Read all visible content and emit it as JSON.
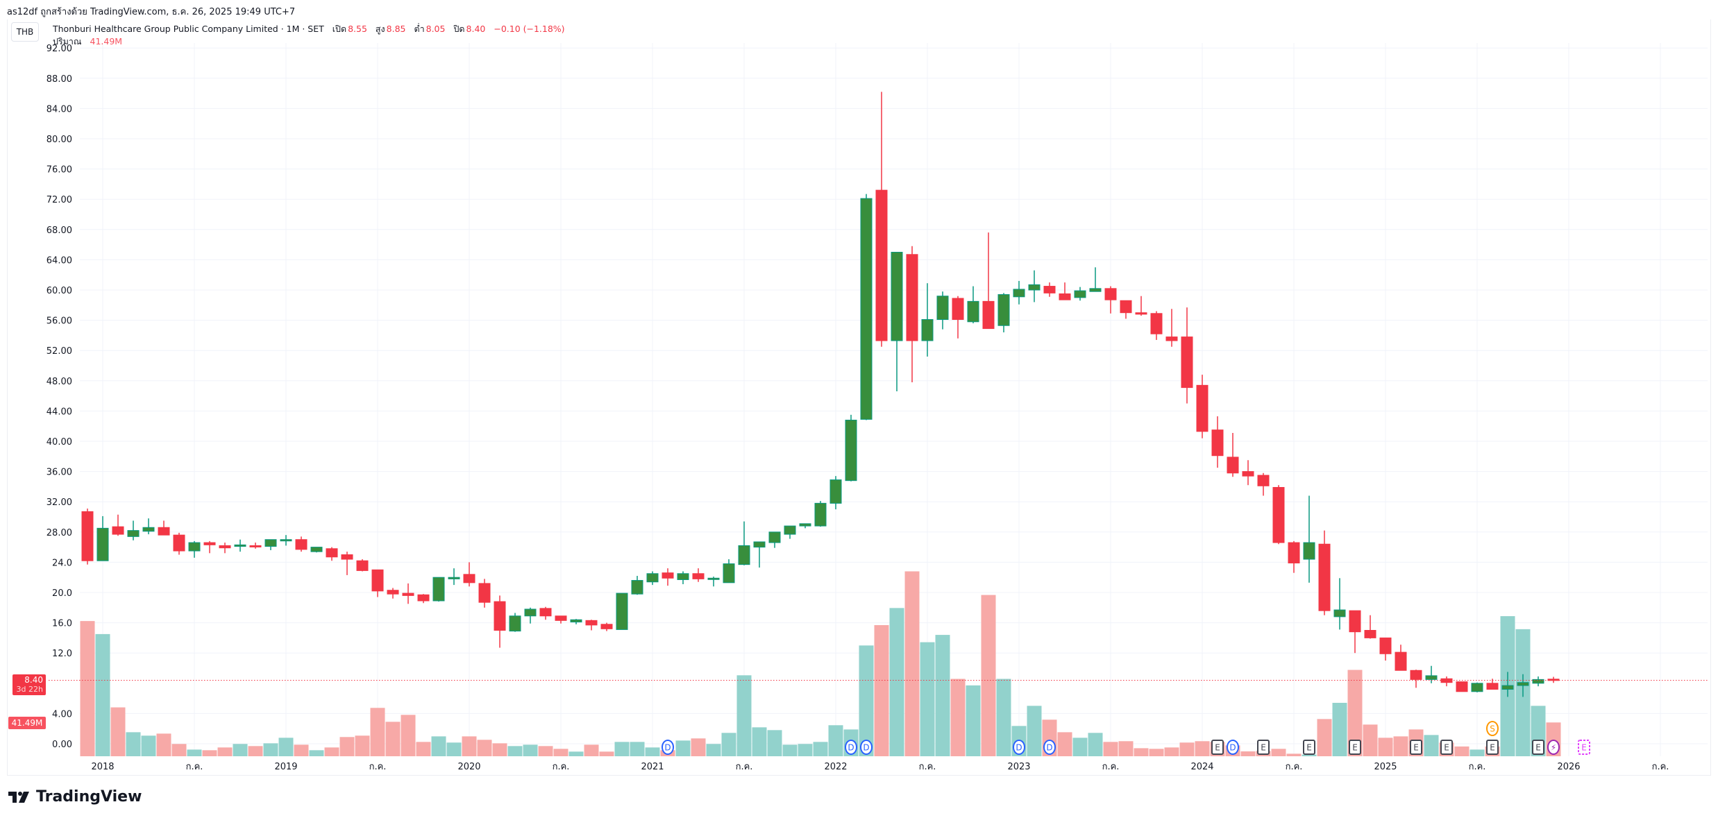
{
  "attribution": "as12df ถูกสร้างด้วย TradingView.com, ธ.ค. 26, 2025 19:49 UTC+7",
  "currency": "THB",
  "legend": {
    "title": "Thonburi Healthcare Group Public Company Limited · 1M · SET",
    "open_label": "เปิด",
    "open": "8.55",
    "high_label": "สูง",
    "high": "8.85",
    "low_label": "ต่ำ",
    "low": "8.05",
    "close_label": "ปิด",
    "close": "8.40",
    "change": "−0.10 (−1.18%)",
    "volume_label": "ปริมาณ",
    "volume": "41.49M"
  },
  "last_price_tag": {
    "price": "8.40",
    "countdown": "3d 22h"
  },
  "volume_tag": "41.49M",
  "brand": "TradingView",
  "colors": {
    "up": "#388e3c",
    "up_wick": "#089981",
    "down": "#f23645",
    "vol_up": "#92d2cc",
    "vol_down": "#f7a9a7",
    "grid": "#f0f3fa"
  },
  "chart_data": {
    "type": "candlestick",
    "interval": "1M",
    "start_month": "2017-12",
    "ylim": [
      0,
      92
    ],
    "y_ticks": [
      {
        "v": 92,
        "label": "92.00"
      },
      {
        "v": 88,
        "label": "88.00"
      },
      {
        "v": 84,
        "label": "84.00"
      },
      {
        "v": 80,
        "label": "80.00"
      },
      {
        "v": 76,
        "label": "76.00"
      },
      {
        "v": 72,
        "label": "72.00"
      },
      {
        "v": 68,
        "label": "68.00"
      },
      {
        "v": 64,
        "label": "64.00"
      },
      {
        "v": 60,
        "label": "60.00"
      },
      {
        "v": 56,
        "label": "56.00"
      },
      {
        "v": 52,
        "label": "52.00"
      },
      {
        "v": 48,
        "label": "48.00"
      },
      {
        "v": 44,
        "label": "44.00"
      },
      {
        "v": 40,
        "label": "40.00"
      },
      {
        "v": 36,
        "label": "36.00"
      },
      {
        "v": 32,
        "label": "32.00"
      },
      {
        "v": 28,
        "label": "28.00"
      },
      {
        "v": 24,
        "label": "24.0"
      },
      {
        "v": 20,
        "label": "20.0"
      },
      {
        "v": 16,
        "label": "16.0"
      },
      {
        "v": 12,
        "label": "12.0"
      },
      {
        "v": 4,
        "label": "4.00"
      },
      {
        "v": 0,
        "label": "0.00"
      }
    ],
    "x_ticks": [
      {
        "month": 1,
        "label": "2018"
      },
      {
        "month": 7,
        "label": "ก.ค."
      },
      {
        "month": 13,
        "label": "2019"
      },
      {
        "month": 19,
        "label": "ก.ค."
      },
      {
        "month": 25,
        "label": "2020"
      },
      {
        "month": 31,
        "label": "ก.ค."
      },
      {
        "month": 37,
        "label": "2021"
      },
      {
        "month": 43,
        "label": "ก.ค."
      },
      {
        "month": 49,
        "label": "2022"
      },
      {
        "month": 55,
        "label": "ก.ค."
      },
      {
        "month": 61,
        "label": "2023"
      },
      {
        "month": 67,
        "label": "ก.ค."
      },
      {
        "month": 73,
        "label": "2024"
      },
      {
        "month": 79,
        "label": "ก.ค."
      },
      {
        "month": 85,
        "label": "2025"
      },
      {
        "month": 91,
        "label": "ก.ค."
      },
      {
        "month": 97,
        "label": "2026"
      },
      {
        "month": 103,
        "label": "ก.ค."
      }
    ],
    "last_price": 8.4,
    "ohlcv": [
      [
        30.7,
        31.1,
        23.7,
        24.2,
        166
      ],
      [
        24.2,
        30.1,
        24.2,
        28.5,
        150
      ],
      [
        28.7,
        30.3,
        27.5,
        27.7,
        60
      ],
      [
        27.4,
        29.5,
        26.9,
        28.2,
        29.5
      ],
      [
        28.1,
        29.8,
        27.7,
        28.6,
        25.3
      ],
      [
        28.6,
        29.5,
        27.6,
        27.6,
        27.8
      ],
      [
        27.6,
        27.9,
        25.0,
        25.5,
        15.1
      ],
      [
        25.5,
        26.8,
        24.6,
        26.6,
        8.2
      ],
      [
        26.6,
        26.8,
        25.2,
        26.3,
        7.4
      ],
      [
        26.2,
        26.6,
        25.2,
        25.9,
        10.8
      ],
      [
        26.1,
        27.0,
        25.4,
        26.3,
        15.1
      ],
      [
        26.2,
        26.6,
        25.8,
        26.1,
        12.5
      ],
      [
        26.1,
        27.0,
        25.6,
        27.0,
        15.9
      ],
      [
        26.9,
        27.6,
        26.2,
        27.0,
        22.7
      ],
      [
        27.0,
        27.4,
        25.4,
        25.7,
        14.2
      ],
      [
        25.4,
        26.0,
        25.3,
        26.0,
        7.4
      ],
      [
        25.8,
        26.0,
        24.2,
        24.7,
        10.8
      ],
      [
        25.0,
        25.4,
        22.3,
        24.4,
        23.6
      ],
      [
        24.2,
        24.4,
        22.8,
        22.9,
        25.3
      ],
      [
        23.0,
        23.0,
        19.4,
        20.2,
        59.4
      ],
      [
        20.3,
        20.6,
        19.2,
        19.8,
        42.3
      ],
      [
        19.9,
        21.2,
        18.5,
        19.6,
        50.8
      ],
      [
        19.7,
        19.8,
        18.6,
        18.9,
        17.6
      ],
      [
        18.9,
        22.0,
        18.8,
        22.0,
        24.4
      ],
      [
        21.8,
        23.2,
        21.0,
        22.0,
        16.8
      ],
      [
        22.4,
        24.0,
        20.8,
        21.3,
        24.4
      ],
      [
        21.2,
        21.8,
        18.0,
        18.7,
        20.2
      ],
      [
        18.8,
        19.6,
        12.7,
        15.0,
        15.9
      ],
      [
        14.9,
        17.3,
        14.8,
        16.9,
        12.5
      ],
      [
        16.9,
        18.0,
        15.9,
        17.8,
        14.2
      ],
      [
        17.9,
        18.1,
        16.4,
        16.9,
        12.5
      ],
      [
        16.9,
        16.9,
        15.9,
        16.3,
        9.1
      ],
      [
        16.1,
        16.5,
        15.8,
        16.4,
        5.7
      ],
      [
        16.3,
        16.4,
        15.0,
        15.7,
        14.2
      ],
      [
        15.8,
        16.0,
        14.9,
        15.2,
        5.7
      ],
      [
        15.1,
        19.9,
        15.1,
        19.9,
        17.6
      ],
      [
        19.8,
        22.2,
        19.7,
        21.6,
        17.6
      ],
      [
        21.4,
        22.8,
        21.0,
        22.5,
        10.8
      ],
      [
        22.6,
        23.2,
        20.9,
        21.9,
        7.4
      ],
      [
        21.7,
        22.8,
        21.1,
        22.5,
        19.3
      ],
      [
        22.5,
        23.2,
        21.4,
        21.8,
        21.9
      ],
      [
        21.8,
        22.1,
        20.8,
        21.9,
        15.1
      ],
      [
        21.3,
        24.4,
        21.3,
        23.8,
        28.7
      ],
      [
        23.7,
        29.4,
        23.6,
        26.2,
        99.4
      ],
      [
        26.0,
        26.7,
        23.3,
        26.7,
        35.5
      ],
      [
        26.6,
        28.0,
        25.9,
        28.0,
        32.1
      ],
      [
        27.7,
        28.8,
        27.1,
        28.8,
        14.2
      ],
      [
        28.8,
        29.1,
        28.5,
        29.1,
        15.1
      ],
      [
        28.8,
        32.1,
        28.7,
        31.8,
        17.6
      ],
      [
        31.8,
        35.4,
        31.0,
        34.9,
        38.1
      ],
      [
        34.8,
        43.5,
        34.7,
        42.8,
        32.9
      ],
      [
        42.9,
        72.7,
        42.8,
        72.1,
        136
      ],
      [
        73.2,
        86.2,
        52.5,
        53.3,
        161
      ],
      [
        53.3,
        65.0,
        46.6,
        65.0,
        182
      ],
      [
        64.7,
        65.8,
        47.8,
        53.3,
        227
      ],
      [
        53.3,
        60.9,
        51.2,
        56.1,
        140
      ],
      [
        56.1,
        59.8,
        54.8,
        59.2,
        149
      ],
      [
        58.9,
        59.2,
        53.6,
        56.1,
        95
      ],
      [
        55.8,
        60.5,
        55.6,
        58.5,
        87
      ],
      [
        58.5,
        67.6,
        54.9,
        54.9,
        198
      ],
      [
        55.3,
        59.6,
        54.4,
        59.4,
        95
      ],
      [
        59.1,
        61.2,
        58.1,
        60.1,
        37.2
      ],
      [
        60.0,
        62.6,
        58.4,
        60.7,
        61.9
      ],
      [
        60.5,
        61.0,
        59.1,
        59.6,
        44.9
      ],
      [
        59.5,
        61.0,
        58.7,
        58.7,
        29.5
      ],
      [
        59.0,
        60.4,
        58.6,
        59.9,
        22.7
      ],
      [
        59.8,
        63.0,
        59.8,
        60.2,
        28.7
      ],
      [
        60.2,
        60.5,
        56.9,
        58.7,
        17.6
      ],
      [
        58.6,
        58.6,
        56.2,
        57.0,
        18.5
      ],
      [
        57.0,
        59.2,
        56.6,
        56.8,
        9.9
      ],
      [
        56.9,
        57.2,
        53.4,
        54.2,
        9.1
      ],
      [
        53.8,
        57.5,
        52.5,
        53.3,
        10.8
      ],
      [
        53.8,
        57.7,
        45.0,
        47.1,
        16.8
      ],
      [
        47.4,
        48.8,
        40.4,
        41.3,
        18.5
      ],
      [
        41.5,
        43.3,
        36.5,
        38.1,
        17.6
      ],
      [
        37.9,
        41.1,
        35.3,
        35.8,
        13.3
      ],
      [
        36.0,
        37.5,
        34.2,
        35.4,
        6.0
      ],
      [
        35.5,
        35.8,
        32.8,
        34.1,
        6.5
      ],
      [
        33.9,
        34.2,
        26.4,
        26.6,
        9.1
      ],
      [
        26.6,
        26.8,
        22.6,
        23.9,
        3.1
      ],
      [
        24.4,
        32.8,
        21.3,
        26.6,
        2.0
      ],
      [
        26.4,
        28.2,
        17.0,
        17.6,
        45.7
      ],
      [
        16.8,
        21.9,
        15.1,
        17.7,
        65.6
      ],
      [
        17.6,
        17.6,
        12.0,
        14.8,
        106
      ],
      [
        15.0,
        17.0,
        13.9,
        14.0,
        38.9
      ],
      [
        14.0,
        14.0,
        11.0,
        11.9,
        22.7
      ],
      [
        12.1,
        13.1,
        9.7,
        9.7,
        24.4
      ],
      [
        9.7,
        9.8,
        7.4,
        8.5,
        32.9
      ],
      [
        8.5,
        10.3,
        8.0,
        9.0,
        26.1
      ],
      [
        8.6,
        8.9,
        7.6,
        8.1,
        16.8
      ],
      [
        8.2,
        8.2,
        6.9,
        6.9,
        12
      ],
      [
        6.9,
        8.1,
        6.8,
        8.0,
        8.2
      ],
      [
        8.0,
        8.6,
        7.2,
        7.2,
        12
      ],
      [
        7.2,
        9.5,
        6.2,
        7.7,
        172
      ],
      [
        7.7,
        9.2,
        6.2,
        8.1,
        156
      ],
      [
        8.0,
        8.9,
        7.6,
        8.5,
        61.9
      ],
      [
        8.55,
        8.85,
        8.05,
        8.4,
        41.49
      ]
    ],
    "events": [
      {
        "month": 38,
        "label": "D",
        "kind": "dividend",
        "color": "#2962ff"
      },
      {
        "month": 50,
        "label": "D",
        "kind": "dividend",
        "color": "#2962ff"
      },
      {
        "month": 51,
        "label": "D",
        "kind": "dividend",
        "color": "#2962ff"
      },
      {
        "month": 61,
        "label": "D",
        "kind": "dividend",
        "color": "#2962ff"
      },
      {
        "month": 63,
        "label": "D",
        "kind": "dividend",
        "color": "#2962ff"
      },
      {
        "month": 74,
        "label": "E",
        "kind": "earnings",
        "color": "#434651"
      },
      {
        "month": 75,
        "label": "D",
        "kind": "dividend",
        "color": "#2962ff"
      },
      {
        "month": 77,
        "label": "E",
        "kind": "earnings",
        "color": "#434651"
      },
      {
        "month": 80,
        "label": "E",
        "kind": "earnings",
        "color": "#434651"
      },
      {
        "month": 83,
        "label": "E",
        "kind": "earnings",
        "color": "#434651"
      },
      {
        "month": 87,
        "label": "E",
        "kind": "earnings",
        "color": "#434651"
      },
      {
        "month": 89,
        "label": "E",
        "kind": "earnings",
        "color": "#434651"
      },
      {
        "month": 92,
        "label": "E",
        "kind": "earnings",
        "color": "#434651"
      },
      {
        "month": 92,
        "label": "S",
        "kind": "split",
        "color": "#ff9800"
      },
      {
        "month": 95,
        "label": "E",
        "kind": "earnings",
        "color": "#434651"
      },
      {
        "month": 96,
        "label": "⚡",
        "kind": "news",
        "color": "#9c27b0"
      },
      {
        "month": 98,
        "label": "E",
        "kind": "upcoming-earnings",
        "color": "#e040fb"
      }
    ]
  }
}
